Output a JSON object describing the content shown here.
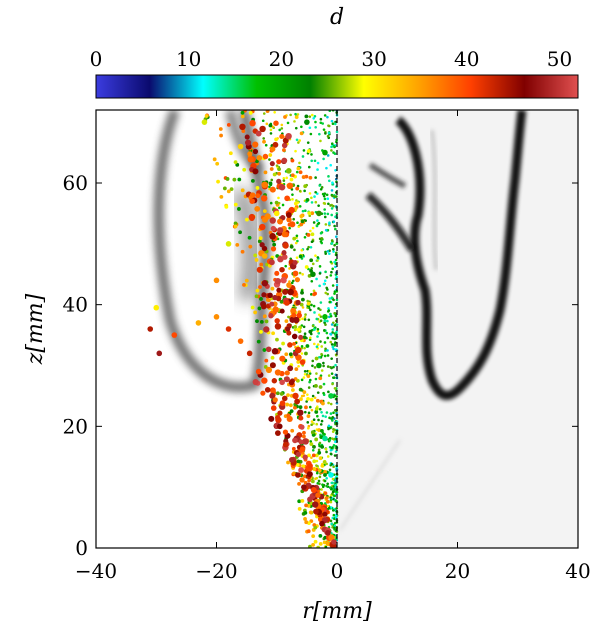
{
  "chart_data": {
    "type": "scatter",
    "title": "",
    "xlabel": "r[mm]",
    "ylabel": "z[mm]",
    "xlim": [
      -40,
      40
    ],
    "ylim": [
      0,
      72
    ],
    "x_ticks": [
      -40,
      -20,
      0,
      20,
      40
    ],
    "y_ticks": [
      0,
      20,
      40,
      60
    ],
    "x_tick_labels": [
      "−40",
      "−20",
      "0",
      "20",
      "40"
    ],
    "y_tick_labels": [
      "0",
      "20",
      "40",
      "60"
    ],
    "grid": false,
    "colorbar": {
      "label": "d",
      "range": [
        0,
        52
      ],
      "ticks": [
        0,
        10,
        20,
        30,
        40,
        50
      ],
      "tick_labels": [
        "0",
        "10",
        "20",
        "30",
        "40",
        "50"
      ],
      "colormap_stops": [
        "#3b3ce0",
        "#0a0a6e",
        "#00ffff",
        "#00c000",
        "#008000",
        "#ffff00",
        "#ffa500",
        "#ff4000",
        "#800000",
        "#e05050"
      ]
    },
    "left_half": {
      "description_of_marks": "droplets colored by diameter d over a grayscale background image",
      "points": [
        {
          "r": -0.5,
          "z": 1.0,
          "d": 50
        },
        {
          "r": -1.5,
          "z": 2.5,
          "d": 48
        },
        {
          "r": -2.5,
          "z": 4.0,
          "d": 46
        },
        {
          "r": -3.5,
          "z": 6.0,
          "d": 44
        },
        {
          "r": -4.5,
          "z": 8.0,
          "d": 50
        },
        {
          "r": -5.5,
          "z": 10.0,
          "d": 47
        },
        {
          "r": -6.5,
          "z": 12.0,
          "d": 45
        },
        {
          "r": -7.5,
          "z": 14.5,
          "d": 49
        },
        {
          "r": -8.5,
          "z": 17.0,
          "d": 43
        },
        {
          "r": -9.5,
          "z": 20.0,
          "d": 46
        },
        {
          "r": -10.5,
          "z": 23.0,
          "d": 41
        },
        {
          "r": -11.5,
          "z": 26.0,
          "d": 44
        },
        {
          "r": -13.0,
          "z": 29.0,
          "d": 40
        },
        {
          "r": -14.5,
          "z": 32.0,
          "d": 43
        },
        {
          "r": -16.0,
          "z": 34.0,
          "d": 38
        },
        {
          "r": -18.0,
          "z": 36.0,
          "d": 42
        },
        {
          "r": -20.0,
          "z": 38.0,
          "d": 36
        },
        {
          "r": -23.0,
          "z": 37.0,
          "d": 34
        },
        {
          "r": -27.0,
          "z": 35.0,
          "d": 40
        },
        {
          "r": -31.0,
          "z": 36.0,
          "d": 44
        },
        {
          "r": -30.0,
          "z": 39.5,
          "d": 30
        },
        {
          "r": -29.5,
          "z": 32.0,
          "d": 48
        },
        {
          "r": -1.0,
          "z": 12.0,
          "d": 12
        },
        {
          "r": -2.0,
          "z": 18.0,
          "d": 14
        },
        {
          "r": -1.0,
          "z": 25.0,
          "d": 16
        },
        {
          "r": -3.0,
          "z": 30.0,
          "d": 20
        },
        {
          "r": -2.0,
          "z": 38.0,
          "d": 18
        },
        {
          "r": -4.0,
          "z": 45.0,
          "d": 22
        },
        {
          "r": -3.0,
          "z": 55.0,
          "d": 24
        },
        {
          "r": -2.0,
          "z": 65.0,
          "d": 20
        },
        {
          "r": -5.0,
          "z": 70.0,
          "d": 22
        },
        {
          "r": -8.0,
          "z": 62.0,
          "d": 26
        },
        {
          "r": -10.0,
          "z": 55.0,
          "d": 30
        },
        {
          "r": -12.0,
          "z": 48.0,
          "d": 34
        },
        {
          "r": -14.0,
          "z": 58.0,
          "d": 38
        },
        {
          "r": -16.0,
          "z": 66.0,
          "d": 32
        },
        {
          "r": -18.0,
          "z": 50.0,
          "d": 28
        },
        {
          "r": -20.0,
          "z": 44.0,
          "d": 36
        },
        {
          "r": -22.0,
          "z": 70.0,
          "d": 28
        }
      ]
    },
    "right_half": {
      "description_of_marks": "grayscale image of a flame/spray front"
    }
  }
}
